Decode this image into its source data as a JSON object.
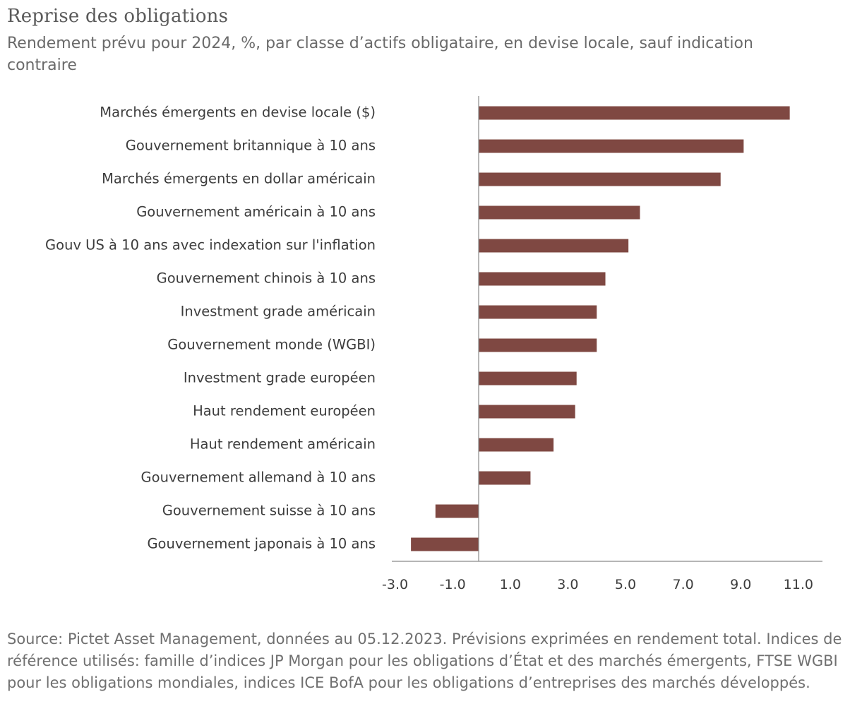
{
  "title": "Reprise des obligations",
  "subtitle": "Rendement prévu pour 2024, %, par classe d’actifs obligataire, en devise locale, sauf indication contraire",
  "source": "Source: Pictet Asset Management, données au 05.12.2023. Prévisions exprimées en rendement total. Indices de référence utilisés: famille d’indices JP Morgan pour les obligations d’État et des marchés émergents, FTSE WGBI pour les obligations mondiales, indices ICE BofA pour les obligations d’entreprises des marchés développés.",
  "chart_data": {
    "type": "bar",
    "orientation": "horizontal",
    "title": "Reprise des obligations",
    "subtitle": "Rendement prévu pour 2024, %, par classe d’actifs obligataire, en devise locale, sauf indication contraire",
    "xlabel": "",
    "ylabel": "",
    "categories": [
      "Marchés émergents en devise locale ($)",
      "Gouvernement britannique à 10 ans",
      "Marchés émergents en dollar américain",
      "Gouvernement américain à 10 ans",
      "Gouv US à 10 ans avec indexation sur l'inflation",
      "Gouvernement chinois à 10 ans",
      "Investment grade américain",
      "Gouvernement monde (WGBI)",
      "Investment grade européen",
      "Haut rendement européen",
      "Haut rendement américain",
      "Gouvernement allemand à 10 ans",
      "Gouvernement suisse à 10 ans",
      "Gouvernement japonais à 10 ans"
    ],
    "values": [
      10.8,
      9.2,
      8.4,
      5.6,
      5.2,
      4.4,
      4.1,
      4.1,
      3.4,
      3.35,
      2.6,
      1.8,
      -1.5,
      -2.35
    ],
    "xlim": [
      -3.0,
      12.0
    ],
    "xticks": [
      "-3.0",
      "-1.0",
      "1.0",
      "3.0",
      "5.0",
      "7.0",
      "9.0",
      "11.0"
    ],
    "bar_color": "#7f4842",
    "grid": false,
    "legend": "none"
  }
}
